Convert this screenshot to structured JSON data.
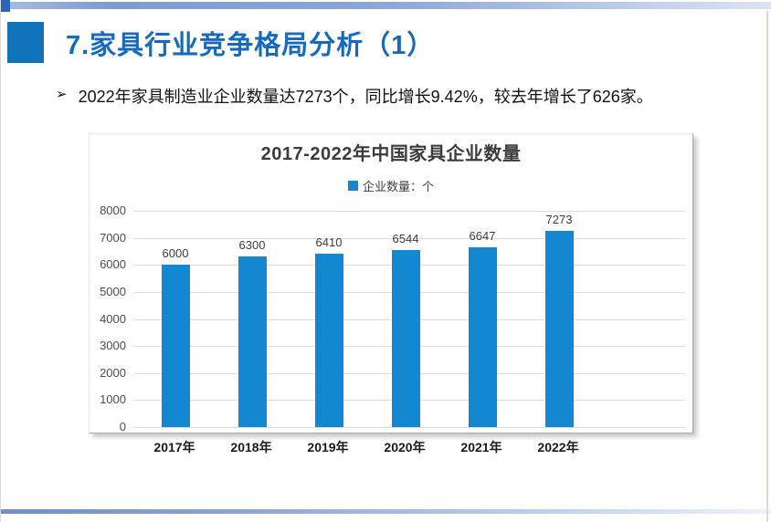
{
  "slide": {
    "title": "7.家具行业竞争格局分析（1）",
    "bullet_marker": "➢",
    "bullet_text": "2022年家具制造业企业数量达7273个，同比增长9.42%，较去年增长了626家。"
  },
  "colors": {
    "title_text": "#166abe",
    "title_square": "#1174ba",
    "bar": "#1487d2",
    "top_strip_left": "#7e9ad0",
    "top_strip_right": "#dce4f3",
    "gridline": "#dcdcdc"
  },
  "chart_data": {
    "type": "bar",
    "title": "2017-2022年中国家具企业数量",
    "legend": "企业数量：个",
    "legend_position": "top",
    "categories": [
      "2017年",
      "2018年",
      "2019年",
      "2020年",
      "2021年",
      "2022年"
    ],
    "values": [
      6000,
      6300,
      6410,
      6544,
      6647,
      7273
    ],
    "xlabel": "",
    "ylabel": "",
    "ylim": [
      0,
      8000
    ],
    "ytick_step": 1000,
    "grid": true,
    "bar_color": "#1487d2"
  }
}
